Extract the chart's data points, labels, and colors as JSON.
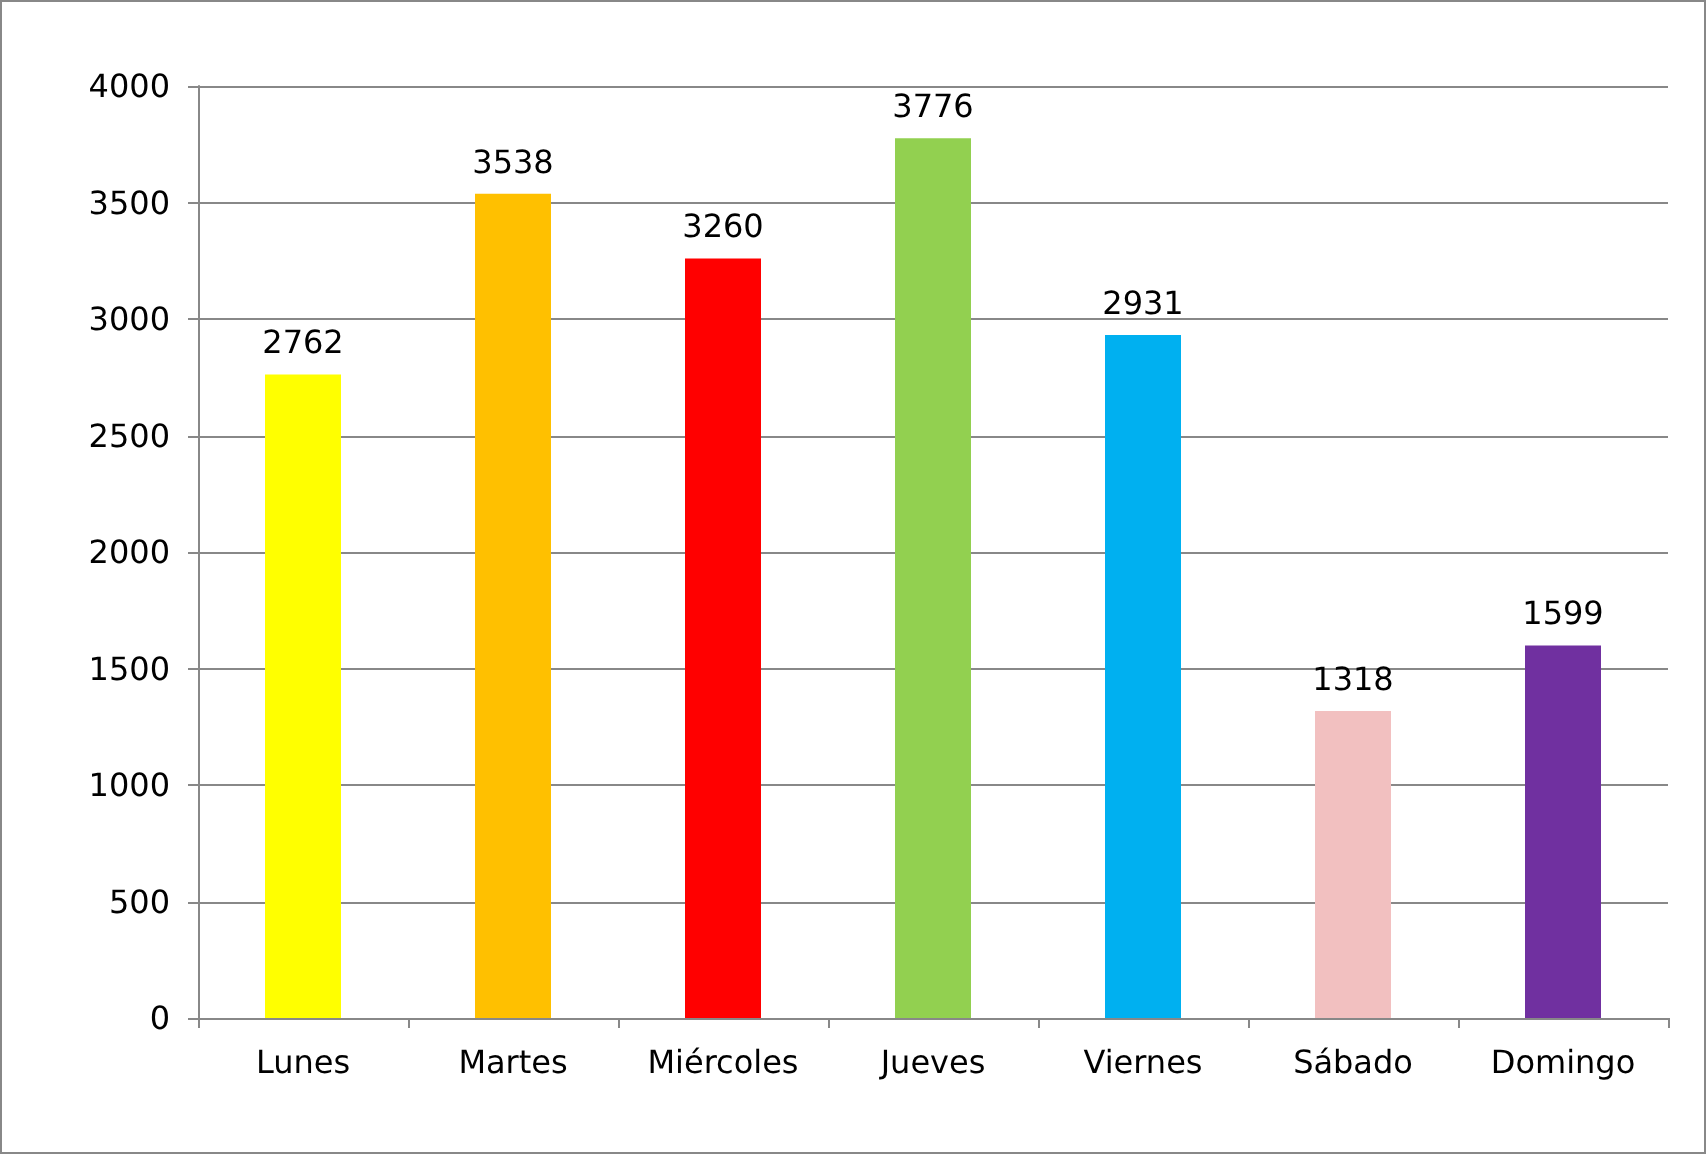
{
  "chart_data": {
    "type": "bar",
    "categories": [
      "Lunes",
      "Martes",
      "Miércoles",
      "Jueves",
      "Viernes",
      "Sábado",
      "Domingo"
    ],
    "values": [
      2762,
      3538,
      3260,
      3776,
      2931,
      1318,
      1599
    ],
    "colors": [
      "#ffff00",
      "#ffc000",
      "#ff0000",
      "#92d050",
      "#00b0f0",
      "#f2c0c0",
      "#7030a0"
    ],
    "ylim": [
      0,
      4000
    ],
    "yticks": [
      0,
      500,
      1000,
      1500,
      2000,
      2500,
      3000,
      3500,
      4000
    ],
    "grid": "y",
    "data_labels": true
  }
}
